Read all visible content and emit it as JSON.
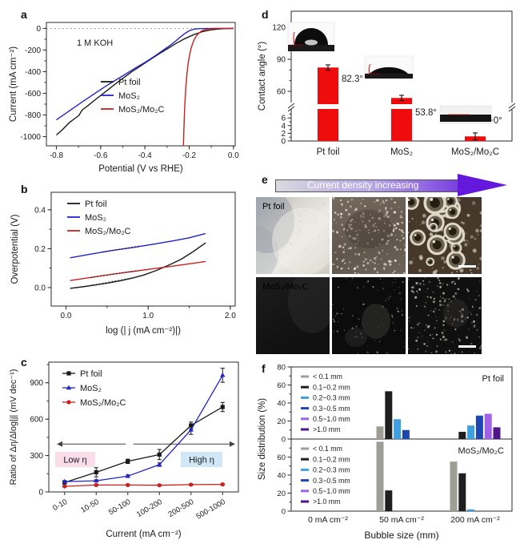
{
  "figure_bg": "#ffffff",
  "panel_labels": {
    "a": "a",
    "b": "b",
    "c": "c",
    "d": "d",
    "e": "e",
    "f": "f"
  },
  "colors": {
    "pt_foil": "#1a1a1a",
    "mos2": "#2323cc",
    "mos2_mo2c": "#cc1f1f",
    "bar_red": "#ee0c0c",
    "frame": "#2a2a2a",
    "low_eta_bg": "#fbdde9",
    "high_eta_bg": "#cfe7f7",
    "arrow_purple": "#6318dc"
  },
  "panel_e": {
    "arrow_label": "Current density increasing",
    "row_labels": [
      "Pt foil",
      "MoS₂/Mo₂C"
    ],
    "cells": [
      {
        "style": "haze",
        "label": "Pt foil",
        "label_color": "#3a3a3a",
        "scalebar": false
      },
      {
        "style": "dense-small-bubbles",
        "dot_color": "#f2e8da",
        "count": 210,
        "scalebar": false
      },
      {
        "style": "big-bubbles",
        "scalebar": true
      },
      {
        "style": "dark-plain",
        "label": "MoS₂/Mo₂C",
        "label_color": "#ececec",
        "scalebar": false
      },
      {
        "style": "dark-sparse-dots",
        "dot_color": "#cac6bc",
        "count": 80,
        "scalebar": false
      },
      {
        "style": "dark-dense-dots",
        "dot_color": "#e2ddd2",
        "count": 170,
        "scalebar": true
      }
    ]
  },
  "chart_data": [
    {
      "id": "a",
      "type": "line",
      "annotation": "1 M KOH",
      "xlabel": "Potential (V vs RHE)",
      "ylabel": "Current (mA cm⁻²)",
      "xlim": [
        -0.845,
        0.008
      ],
      "ylim": [
        -1085,
        55
      ],
      "xticks": [
        -0.8,
        -0.6,
        -0.4,
        -0.2,
        0.0
      ],
      "xminor_step": 0.1,
      "yticks": [
        0,
        -200,
        -400,
        -600,
        -800,
        -1000
      ],
      "yminor_step": 100,
      "zero_dash_line": 0,
      "legend": [
        "Pt foil",
        "MoS₂",
        "MoS₂/Mo₂C"
      ],
      "series": [
        {
          "name": "Pt foil",
          "color": "#1a1a1a",
          "points": [
            [
              -0.8,
              -985
            ],
            [
              -0.77,
              -930
            ],
            [
              -0.74,
              -868
            ],
            [
              -0.71,
              -822
            ],
            [
              -0.697,
              -802
            ],
            [
              -0.688,
              -768
            ],
            [
              -0.68,
              -748
            ],
            [
              -0.66,
              -718
            ],
            [
              -0.62,
              -652
            ],
            [
              -0.58,
              -588
            ],
            [
              -0.54,
              -524
            ],
            [
              -0.5,
              -462
            ],
            [
              -0.46,
              -402
            ],
            [
              -0.42,
              -348
            ],
            [
              -0.38,
              -294
            ],
            [
              -0.34,
              -240
            ],
            [
              -0.3,
              -190
            ],
            [
              -0.26,
              -140
            ],
            [
              -0.22,
              -95
            ],
            [
              -0.18,
              -58
            ],
            [
              -0.14,
              -30
            ],
            [
              -0.1,
              -13
            ],
            [
              -0.06,
              -4
            ],
            [
              -0.02,
              -1
            ],
            [
              0.0,
              0
            ]
          ]
        },
        {
          "name": "MoS₂",
          "color": "#2323cc",
          "points": [
            [
              -0.8,
              -845
            ],
            [
              -0.74,
              -760
            ],
            [
              -0.68,
              -675
            ],
            [
              -0.62,
              -592
            ],
            [
              -0.56,
              -512
            ],
            [
              -0.5,
              -438
            ],
            [
              -0.44,
              -362
            ],
            [
              -0.4,
              -315
            ],
            [
              -0.36,
              -262
            ],
            [
              -0.32,
              -205
            ],
            [
              -0.28,
              -148
            ],
            [
              -0.26,
              -115
            ],
            [
              -0.24,
              -80
            ],
            [
              -0.22,
              -48
            ],
            [
              -0.2,
              -22
            ],
            [
              -0.18,
              -8
            ],
            [
              -0.16,
              -3
            ],
            [
              -0.12,
              -1
            ],
            [
              -0.08,
              0
            ],
            [
              0.0,
              0
            ]
          ]
        },
        {
          "name": "MoS₂/Mo₂C",
          "color": "#cc1f1f",
          "points": [
            [
              -0.226,
              -1085
            ],
            [
              -0.224,
              -950
            ],
            [
              -0.222,
              -820
            ],
            [
              -0.219,
              -680
            ],
            [
              -0.215,
              -540
            ],
            [
              -0.21,
              -420
            ],
            [
              -0.205,
              -330
            ],
            [
              -0.198,
              -245
            ],
            [
              -0.19,
              -175
            ],
            [
              -0.18,
              -115
            ],
            [
              -0.17,
              -75
            ],
            [
              -0.158,
              -48
            ],
            [
              -0.145,
              -26
            ],
            [
              -0.13,
              -13
            ],
            [
              -0.11,
              -5
            ],
            [
              -0.09,
              -2
            ],
            [
              -0.05,
              -1
            ],
            [
              0.0,
              0
            ]
          ]
        }
      ]
    },
    {
      "id": "b",
      "type": "line",
      "xlabel": "log (| j (mA cm⁻²)|)",
      "ylabel": "Overpotential (V)",
      "xlim": [
        -0.18,
        2.06
      ],
      "ylim": [
        -0.095,
        0.49
      ],
      "xticks": [
        0,
        1,
        2
      ],
      "xminor_step": 0.5,
      "yticks": [
        0.0,
        0.2,
        0.4
      ],
      "yminor_step": 0.1,
      "legend": [
        "Pt foil",
        "MoS₂",
        "MoS₂/Mo₂C"
      ],
      "series": [
        {
          "name": "Pt foil",
          "color": "#1a1a1a",
          "points": [
            [
              0.05,
              -0.004
            ],
            [
              0.2,
              0.004
            ],
            [
              0.35,
              0.013
            ],
            [
              0.5,
              0.023
            ],
            [
              0.65,
              0.034
            ],
            [
              0.8,
              0.048
            ],
            [
              0.95,
              0.065
            ],
            [
              1.1,
              0.088
            ],
            [
              1.25,
              0.115
            ],
            [
              1.4,
              0.145
            ],
            [
              1.55,
              0.185
            ],
            [
              1.7,
              0.23
            ]
          ]
        },
        {
          "name": "MoS₂",
          "color": "#2323cc",
          "points": [
            [
              0.05,
              0.153
            ],
            [
              0.3,
              0.172
            ],
            [
              0.55,
              0.19
            ],
            [
              0.8,
              0.205
            ],
            [
              1.05,
              0.222
            ],
            [
              1.3,
              0.24
            ],
            [
              1.5,
              0.256
            ],
            [
              1.7,
              0.278
            ]
          ]
        },
        {
          "name": "MoS₂/Mo₂C",
          "color": "#cc1f1f",
          "points": [
            [
              0.05,
              0.036
            ],
            [
              0.3,
              0.052
            ],
            [
              0.55,
              0.068
            ],
            [
              0.8,
              0.082
            ],
            [
              1.05,
              0.096
            ],
            [
              1.3,
              0.11
            ],
            [
              1.5,
              0.122
            ],
            [
              1.7,
              0.134
            ]
          ]
        }
      ],
      "fit_segments": [
        {
          "points": [
            [
              0.25,
              0.007
            ],
            [
              0.8,
              0.049
            ]
          ]
        },
        {
          "points": [
            [
              0.45,
              0.183
            ],
            [
              0.9,
              0.214
            ]
          ]
        },
        {
          "points": [
            [
              0.3,
              0.051
            ],
            [
              0.85,
              0.086
            ]
          ]
        }
      ]
    },
    {
      "id": "c",
      "type": "line-category",
      "xlabel": "Current (mA cm⁻²)",
      "ylabel": "Ratio of Δη/Δlog|j| (mV dec⁻¹)",
      "categories": [
        "0-10",
        "10-50",
        "50-100",
        "100-200",
        "200-500",
        "500-1000"
      ],
      "ylim": [
        0,
        1070
      ],
      "yticks": [
        0,
        300,
        600,
        900
      ],
      "yminor_step": 150,
      "annotations": {
        "low": "Low η",
        "high": "High η"
      },
      "series": [
        {
          "name": "Pt foil",
          "color": "#1a1a1a",
          "marker": "square",
          "values": [
            78,
            162,
            252,
            308,
            548,
            700
          ],
          "errors": [
            12,
            38,
            18,
            42,
            28,
            38
          ]
        },
        {
          "name": "MoS₂",
          "color": "#2323cc",
          "marker": "triangle",
          "values": [
            85,
            92,
            130,
            225,
            512,
            962
          ],
          "errors": [
            8,
            8,
            10,
            14,
            38,
            58
          ]
        },
        {
          "name": "MoS₂/Mo₂C",
          "color": "#cc1f1f",
          "marker": "circle",
          "values": [
            46,
            57,
            57,
            55,
            60,
            62
          ],
          "errors": [
            5,
            5,
            4,
            4,
            5,
            5
          ]
        }
      ]
    },
    {
      "id": "d",
      "type": "bar-broken-axis",
      "ylabel": "Contact angle (°)",
      "categories": [
        "Pt foil",
        "MoS₂",
        "MoS₂/Mo₂C"
      ],
      "values": [
        82.3,
        53.8,
        1.2
      ],
      "errors": [
        2.5,
        2.3,
        0.9
      ],
      "value_labels": [
        "82.3°",
        "53.8°",
        "~0°"
      ],
      "bar_color": "#ee0c0c",
      "upper_ticks": [
        60,
        90,
        120
      ],
      "lower_ticks": [
        0,
        2,
        4,
        6
      ]
    },
    {
      "id": "f",
      "type": "bar-grouped-stackedpanels",
      "xlabel": "Bubble size (mm)",
      "ylabel": "Size distribution (%)",
      "groups": [
        "0 mA cm⁻²",
        "50 mA cm⁻²",
        "200 mA cm⁻²"
      ],
      "size_classes": [
        {
          "label": "< 0.1 mm",
          "color": "#9e9e94"
        },
        {
          "label": "0.1~0.2 mm",
          "color": "#1f1f1f"
        },
        {
          "label": "0.2~0.3 mm",
          "color": "#3f9fe0"
        },
        {
          "label": "0.3~0.5 mm",
          "color": "#1f47b4"
        },
        {
          "label": "0.5~1.0 mm",
          "color": "#9f62e8"
        },
        {
          "label": ">1.0 mm",
          "color": "#4f1488"
        }
      ],
      "panels": [
        {
          "title": "Pt foil",
          "yticks": [
            0,
            20,
            40,
            60,
            80
          ],
          "values": [
            [
              0,
              0,
              0,
              0,
              0,
              0
            ],
            [
              14,
              53,
              22,
              10,
              0,
              0
            ],
            [
              0,
              8,
              15,
              26,
              28,
              13
            ]
          ]
        },
        {
          "title": "MoS₂/Mo₂C",
          "yticks": [
            0,
            20,
            40,
            60
          ],
          "values": [
            [
              0,
              0,
              0,
              0,
              0,
              0
            ],
            [
              77,
              23,
              0,
              0,
              0,
              0
            ],
            [
              55,
              42,
              2,
              0,
              0,
              0
            ]
          ]
        }
      ]
    }
  ]
}
